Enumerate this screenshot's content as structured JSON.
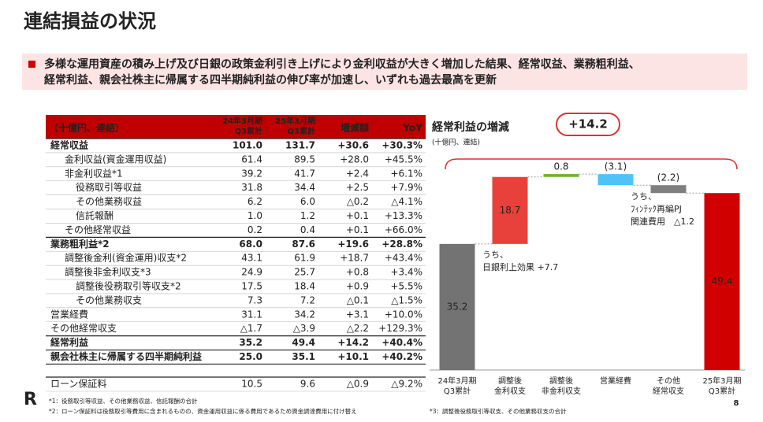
{
  "header": {
    "title": "連結損益の状況"
  },
  "summary": {
    "lines": [
      "多様な運用資産の積み上げ及び日銀の政策金利引き上げにより金利収益が大きく増加した結果、経常収益、業務粗利益、",
      "経常利益、親会社株主に帰属する四半期純利益の伸び率が加速し、いずれも過去最高を更新"
    ]
  },
  "table": {
    "unit": "（十億円、連結）",
    "columns": [
      [
        "24年3月期",
        "Q3累計"
      ],
      [
        "25年3月期",
        "Q3累計"
      ],
      [
        "増減額"
      ],
      [
        "YoY"
      ]
    ],
    "rows": [
      {
        "label": "経常収益",
        "level": 0,
        "bold": true,
        "cells": [
          "101.0",
          "131.7",
          "+30.6",
          "+30.3%"
        ]
      },
      {
        "label": "金利収益(資金運用収益)",
        "level": 1,
        "bold": false,
        "cells": [
          "61.4",
          "89.5",
          "+28.0",
          "+45.5%"
        ]
      },
      {
        "label": "非金利収益*1",
        "level": 1,
        "bold": false,
        "cells": [
          "39.2",
          "41.7",
          "+2.4",
          "+6.1%"
        ]
      },
      {
        "label": "役務取引等収益",
        "level": 2,
        "bold": false,
        "cells": [
          "31.8",
          "34.4",
          "+2.5",
          "+7.9%"
        ]
      },
      {
        "label": "その他業務収益",
        "level": 2,
        "bold": false,
        "cells": [
          "6.2",
          "6.0",
          "△0.2",
          "△4.1%"
        ]
      },
      {
        "label": "信託報酬",
        "level": 2,
        "bold": false,
        "cells": [
          "1.0",
          "1.2",
          "+0.1",
          "+13.3%"
        ]
      },
      {
        "label": "その他経常収益",
        "level": 1,
        "bold": false,
        "cells": [
          "0.2",
          "0.4",
          "+0.1",
          "+66.0%"
        ]
      },
      {
        "label": "業務粗利益*2",
        "level": 0,
        "bold": true,
        "cells": [
          "68.0",
          "87.6",
          "+19.6",
          "+28.8%"
        ]
      },
      {
        "label": "調整後金利(資金運用)収支*2",
        "level": 1,
        "bold": false,
        "cells": [
          "43.1",
          "61.9",
          "+18.7",
          "+43.4%"
        ]
      },
      {
        "label": "調整後非金利収支*3",
        "level": 1,
        "bold": false,
        "cells": [
          "24.9",
          "25.7",
          "+0.8",
          "+3.4%"
        ]
      },
      {
        "label": "調整後役務取引等収支*2",
        "level": 2,
        "bold": false,
        "cells": [
          "17.5",
          "18.4",
          "+0.9",
          "+5.5%"
        ]
      },
      {
        "label": "その他業務収支",
        "level": 2,
        "bold": false,
        "cells": [
          "7.3",
          "7.2",
          "△0.1",
          "△1.5%"
        ]
      },
      {
        "label": "営業経費",
        "level": 0,
        "bold": false,
        "cells": [
          "31.1",
          "34.2",
          "+3.1",
          "+10.0%"
        ]
      },
      {
        "label": "その他経常収支",
        "level": 0,
        "bold": false,
        "cells": [
          "△1.7",
          "△3.9",
          "△2.2",
          "+129.3%"
        ]
      },
      {
        "label": "経常利益",
        "level": 0,
        "bold": true,
        "cells": [
          "35.2",
          "49.4",
          "+14.2",
          "+40.4%"
        ]
      },
      {
        "label": "親会社株主に帰属する四半期純利益",
        "level": 0,
        "bold": true,
        "cells": [
          "25.0",
          "35.1",
          "+10.1",
          "+40.2%"
        ]
      }
    ],
    "extra_row": {
      "label": "ローン保証料",
      "cells": [
        "10.5",
        "9.6",
        "△0.9",
        "△9.2%"
      ]
    }
  },
  "waterfall": {
    "title": "経常利益の増減",
    "subtitle": "(十億円、連結)",
    "total_change": "+14.2",
    "categories": [
      [
        "24年3月期",
        "Q3累計"
      ],
      [
        "調整後",
        "金利収支"
      ],
      [
        "調整後",
        "非金利収支"
      ],
      [
        "営業経費"
      ],
      [
        "その他",
        "経常収支"
      ],
      [
        "25年3月期",
        "Q3累計"
      ]
    ],
    "values": [
      35.2,
      18.7,
      0.8,
      -3.1,
      -2.2,
      49.4
    ],
    "value_labels": [
      "35.2",
      "18.7",
      "0.8",
      "(3.1)",
      "(2.2)",
      "49.4"
    ],
    "colors": [
      "#737373",
      "#e8413c",
      "#6ab42d",
      "#4fc3f7",
      "#7f7f7f",
      "#d00000"
    ],
    "annotations": [
      [
        "うち、",
        "日銀利上効果 +7.7"
      ],
      [
        "うち、",
        "ﾌｨﾝﾃｯｸ再編PJ",
        "関連費用　△1.2"
      ]
    ]
  },
  "footnotes": [
    "*1：役務取引等収益、その他業務収益、信託報酬の合計",
    "*2：ローン保証料は役務取引等費用に含まれるものの、資金運用収益に係る費用であるため資金調達費用に付け替え",
    "*3：調整後役務取引等収支、その他業務収支の合計"
  ],
  "footer": {
    "logo": "R",
    "page": "8"
  }
}
